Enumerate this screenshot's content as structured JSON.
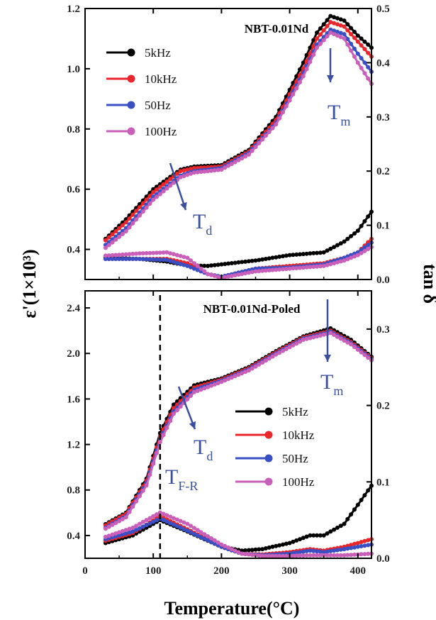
{
  "chart_data": [
    {
      "type": "line",
      "title": "NBT-0.01Nd",
      "x_range": [
        0,
        420
      ],
      "y_left_label": "ε'(1×10³)",
      "y_left_range": [
        0.3,
        1.2
      ],
      "y_left_ticks": [
        0.4,
        0.6,
        0.8,
        1.0,
        1.2
      ],
      "y_left_tick_labels": [
        "0.4",
        "0.6",
        "0.8",
        "1.0",
        "1.2"
      ],
      "y_right_label": "tan δ",
      "y_right_range": [
        0.0,
        0.5
      ],
      "y_right_ticks": [
        0.0,
        0.1,
        0.2,
        0.3,
        0.4,
        0.5
      ],
      "y_right_tick_labels": [
        "0.0",
        "0.1",
        "0.2",
        "0.3",
        "0.4",
        "0.5"
      ],
      "legend": [
        "5kHz",
        "10kHz",
        "50Hz",
        "100Hz"
      ],
      "annotations": {
        "td": {
          "main": "T",
          "sub": "d"
        },
        "tm": {
          "main": "T",
          "sub": "m"
        }
      },
      "series": [
        {
          "name": "5kHz",
          "color": "#000000",
          "axis": "left",
          "x": [
            30,
            60,
            100,
            140,
            160,
            200,
            240,
            280,
            320,
            340,
            360,
            380,
            400,
            420
          ],
          "y": [
            0.435,
            0.5,
            0.6,
            0.665,
            0.675,
            0.68,
            0.73,
            0.84,
            1.02,
            1.12,
            1.175,
            1.16,
            1.11,
            1.07
          ]
        },
        {
          "name": "10kHz",
          "color": "#e8262b",
          "axis": "left",
          "x": [
            30,
            60,
            100,
            140,
            160,
            200,
            240,
            280,
            320,
            340,
            360,
            380,
            400,
            420
          ],
          "y": [
            0.43,
            0.49,
            0.59,
            0.66,
            0.67,
            0.675,
            0.725,
            0.83,
            1.0,
            1.1,
            1.155,
            1.14,
            1.09,
            1.04
          ]
        },
        {
          "name": "50Hz",
          "color": "#3b4fc4",
          "axis": "left",
          "x": [
            30,
            60,
            100,
            140,
            160,
            200,
            240,
            280,
            320,
            340,
            360,
            380,
            400,
            420
          ],
          "y": [
            0.415,
            0.47,
            0.575,
            0.645,
            0.66,
            0.67,
            0.72,
            0.82,
            0.985,
            1.08,
            1.13,
            1.115,
            1.05,
            0.99
          ]
        },
        {
          "name": "100Hz",
          "color": "#c95fb8",
          "axis": "left",
          "x": [
            30,
            60,
            100,
            140,
            160,
            200,
            240,
            280,
            320,
            340,
            360,
            380,
            400,
            420
          ],
          "y": [
            0.405,
            0.46,
            0.565,
            0.64,
            0.655,
            0.665,
            0.715,
            0.815,
            0.975,
            1.07,
            1.12,
            1.1,
            1.02,
            0.95
          ]
        },
        {
          "name": "5kHz",
          "color": "#000000",
          "axis": "right",
          "x": [
            30,
            80,
            120,
            150,
            180,
            200,
            250,
            300,
            350,
            380,
            400,
            420
          ],
          "y": [
            0.04,
            0.038,
            0.033,
            0.026,
            0.025,
            0.028,
            0.035,
            0.045,
            0.05,
            0.07,
            0.09,
            0.125
          ]
        },
        {
          "name": "10kHz",
          "color": "#e8262b",
          "axis": "right",
          "x": [
            30,
            80,
            120,
            150,
            180,
            200,
            250,
            300,
            350,
            380,
            400,
            420
          ],
          "y": [
            0.038,
            0.038,
            0.038,
            0.03,
            0.01,
            0.005,
            0.02,
            0.025,
            0.03,
            0.04,
            0.05,
            0.075
          ]
        },
        {
          "name": "50Hz",
          "color": "#3b4fc4",
          "axis": "right",
          "x": [
            30,
            80,
            120,
            150,
            180,
            200,
            250,
            300,
            350,
            380,
            400,
            420
          ],
          "y": [
            0.038,
            0.038,
            0.036,
            0.025,
            0.01,
            0.005,
            0.02,
            0.022,
            0.028,
            0.04,
            0.05,
            0.068
          ]
        },
        {
          "name": "100Hz",
          "color": "#c95fb8",
          "axis": "right",
          "x": [
            30,
            80,
            120,
            150,
            180,
            200,
            250,
            300,
            350,
            380,
            400,
            420
          ],
          "y": [
            0.044,
            0.048,
            0.05,
            0.04,
            0.01,
            0.003,
            0.015,
            0.02,
            0.025,
            0.035,
            0.045,
            0.06
          ]
        }
      ]
    },
    {
      "type": "line",
      "title": "NBT-0.01Nd-Poled",
      "x_label": "Temperature(°C)",
      "x_range": [
        0,
        420
      ],
      "x_ticks": [
        0,
        100,
        200,
        300,
        400
      ],
      "x_tick_labels": [
        "0",
        "100",
        "200",
        "300",
        "400"
      ],
      "y_left_label": "ε'(1×10³)",
      "y_left_range": [
        0.2,
        2.55
      ],
      "y_left_ticks": [
        0.4,
        0.8,
        1.2,
        1.6,
        2.0,
        2.4
      ],
      "y_left_tick_labels": [
        "0.4",
        "0.8",
        "1.2",
        "1.6",
        "2.0",
        "2.4"
      ],
      "y_right_label": "tan δ",
      "y_right_range": [
        0.0,
        0.35
      ],
      "y_right_ticks": [
        0.0,
        0.1,
        0.2,
        0.3
      ],
      "y_right_tick_labels": [
        "0.0",
        "0.1",
        "0.2",
        "0.3"
      ],
      "legend": [
        "5kHz",
        "10kHz",
        "50Hz",
        "100Hz"
      ],
      "reference_line_x": 110,
      "annotations": {
        "td": {
          "main": "T",
          "sub": "d"
        },
        "tm": {
          "main": "T",
          "sub": "m"
        },
        "tfr": {
          "main": "T",
          "sub": "F-R"
        }
      },
      "series": [
        {
          "name": "5kHz",
          "color": "#000000",
          "axis": "left",
          "x": [
            30,
            60,
            90,
            110,
            130,
            160,
            200,
            240,
            280,
            320,
            360,
            390,
            420
          ],
          "y": [
            0.5,
            0.6,
            0.9,
            1.3,
            1.55,
            1.72,
            1.78,
            1.88,
            2.02,
            2.15,
            2.22,
            2.12,
            1.97
          ]
        },
        {
          "name": "10kHz",
          "color": "#e8262b",
          "axis": "left",
          "x": [
            30,
            60,
            90,
            110,
            130,
            160,
            200,
            240,
            280,
            320,
            360,
            390,
            420
          ],
          "y": [
            0.49,
            0.59,
            0.88,
            1.27,
            1.52,
            1.7,
            1.77,
            1.87,
            2.01,
            2.14,
            2.2,
            2.1,
            1.96
          ]
        },
        {
          "name": "50Hz",
          "color": "#3b4fc4",
          "axis": "left",
          "x": [
            30,
            60,
            90,
            110,
            130,
            160,
            200,
            240,
            280,
            320,
            360,
            390,
            420
          ],
          "y": [
            0.47,
            0.57,
            0.86,
            1.24,
            1.49,
            1.68,
            1.76,
            1.86,
            2.0,
            2.13,
            2.19,
            2.09,
            1.95
          ]
        },
        {
          "name": "100Hz",
          "color": "#c95fb8",
          "axis": "left",
          "x": [
            30,
            60,
            90,
            110,
            130,
            160,
            200,
            240,
            280,
            320,
            360,
            390,
            420
          ],
          "y": [
            0.46,
            0.56,
            0.84,
            1.22,
            1.47,
            1.66,
            1.75,
            1.85,
            1.99,
            2.12,
            2.18,
            2.08,
            1.94
          ]
        },
        {
          "name": "5kHz",
          "color": "#000000",
          "axis": "right",
          "x": [
            30,
            70,
            110,
            150,
            200,
            230,
            260,
            300,
            330,
            350,
            380,
            400,
            420
          ],
          "y": [
            0.02,
            0.03,
            0.05,
            0.035,
            0.015,
            0.01,
            0.012,
            0.02,
            0.03,
            0.03,
            0.045,
            0.07,
            0.095
          ]
        },
        {
          "name": "10kHz",
          "color": "#e8262b",
          "axis": "right",
          "x": [
            30,
            70,
            110,
            150,
            200,
            230,
            260,
            300,
            330,
            350,
            380,
            400,
            420
          ],
          "y": [
            0.023,
            0.033,
            0.055,
            0.038,
            0.015,
            0.006,
            0.005,
            0.008,
            0.012,
            0.01,
            0.015,
            0.02,
            0.025
          ]
        },
        {
          "name": "50Hz",
          "color": "#3b4fc4",
          "axis": "right",
          "x": [
            30,
            70,
            110,
            150,
            200,
            230,
            260,
            300,
            330,
            350,
            380,
            400,
            420
          ],
          "y": [
            0.025,
            0.035,
            0.052,
            0.036,
            0.015,
            0.006,
            0.004,
            0.006,
            0.01,
            0.008,
            0.012,
            0.015,
            0.018
          ]
        },
        {
          "name": "100Hz",
          "color": "#c95fb8",
          "axis": "right",
          "x": [
            30,
            70,
            110,
            150,
            200,
            230,
            260,
            300,
            330,
            350,
            380,
            400,
            420
          ],
          "y": [
            0.028,
            0.04,
            0.06,
            0.045,
            0.018,
            0.006,
            0.003,
            0.003,
            0.004,
            0.004,
            0.004,
            0.005,
            0.006
          ]
        }
      ]
    }
  ]
}
